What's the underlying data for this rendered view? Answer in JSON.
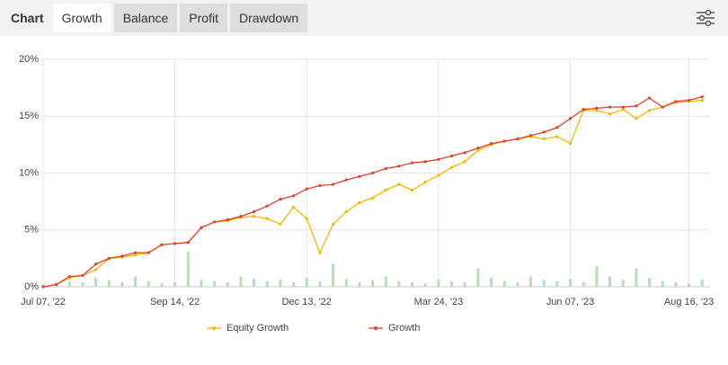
{
  "tabs": {
    "label": "Chart",
    "items": [
      "Growth",
      "Balance",
      "Profit",
      "Drawdown"
    ],
    "active": 0
  },
  "chart_data": {
    "type": "line",
    "categories": [
      "Jul 07, '22",
      null,
      null,
      null,
      null,
      null,
      null,
      null,
      null,
      null,
      "Sep 14, '22",
      null,
      null,
      null,
      null,
      null,
      null,
      null,
      null,
      null,
      "Dec 13, '22",
      null,
      null,
      null,
      null,
      null,
      null,
      null,
      null,
      null,
      "Mar 24, '23",
      null,
      null,
      null,
      null,
      null,
      null,
      null,
      null,
      null,
      "Jun 07, '23",
      null,
      null,
      null,
      null,
      null,
      null,
      null,
      null,
      "Aug 16, '23",
      null
    ],
    "series": [
      {
        "name": "Equity Growth",
        "color": "#f5b800",
        "values": [
          0,
          0.2,
          0.8,
          1.0,
          1.5,
          2.5,
          2.6,
          2.8,
          3.0,
          3.7,
          3.8,
          3.9,
          5.2,
          5.7,
          5.8,
          6.1,
          6.2,
          6.0,
          5.5,
          7.0,
          6.0,
          3.0,
          5.5,
          6.6,
          7.4,
          7.8,
          8.5,
          9.0,
          8.5,
          9.2,
          9.8,
          10.5,
          11.0,
          12.0,
          12.5,
          12.8,
          13.0,
          13.2,
          13.0,
          13.2,
          12.6,
          15.5,
          15.5,
          15.2,
          15.6,
          14.8,
          15.5,
          15.8,
          16.2,
          16.3,
          16.4
        ]
      },
      {
        "name": "Growth",
        "color": "#e0402f",
        "values": [
          0,
          0.2,
          0.9,
          1.0,
          2.0,
          2.5,
          2.7,
          3.0,
          3.0,
          3.7,
          3.8,
          3.9,
          5.2,
          5.7,
          5.9,
          6.2,
          6.6,
          7.1,
          7.7,
          8.0,
          8.6,
          8.9,
          9.0,
          9.4,
          9.7,
          10.0,
          10.4,
          10.6,
          10.9,
          11.0,
          11.2,
          11.5,
          11.8,
          12.2,
          12.6,
          12.8,
          13.0,
          13.3,
          13.6,
          14.0,
          14.8,
          15.6,
          15.7,
          15.8,
          15.8,
          15.9,
          16.6,
          15.8,
          16.3,
          16.4,
          16.7
        ]
      }
    ],
    "bars": {
      "color": "#b5e0b5",
      "values": [
        0.2,
        0.3,
        0.5,
        0.4,
        0.8,
        0.6,
        0.4,
        0.9,
        0.5,
        0.3,
        0.4,
        3.1,
        0.6,
        0.5,
        0.4,
        0.9,
        0.7,
        0.5,
        0.6,
        0.4,
        0.8,
        0.5,
        2.0,
        0.7,
        0.4,
        0.6,
        0.9,
        0.5,
        0.4,
        0.3,
        0.6,
        0.5,
        0.4,
        1.6,
        0.8,
        0.5,
        0.4,
        0.9,
        0.6,
        0.5,
        0.7,
        0.4,
        1.8,
        0.9,
        0.6,
        1.6,
        0.8,
        0.5,
        0.4,
        0.3,
        0.6
      ]
    },
    "ylim": [
      0,
      20
    ],
    "yticks": [
      {
        "value": 0,
        "label": "0%"
      },
      {
        "value": 5,
        "label": "5%"
      },
      {
        "value": 10,
        "label": "10%"
      },
      {
        "value": 15,
        "label": "15%"
      },
      {
        "value": 20,
        "label": "20%"
      }
    ],
    "grid": true,
    "legend": "bottom"
  }
}
